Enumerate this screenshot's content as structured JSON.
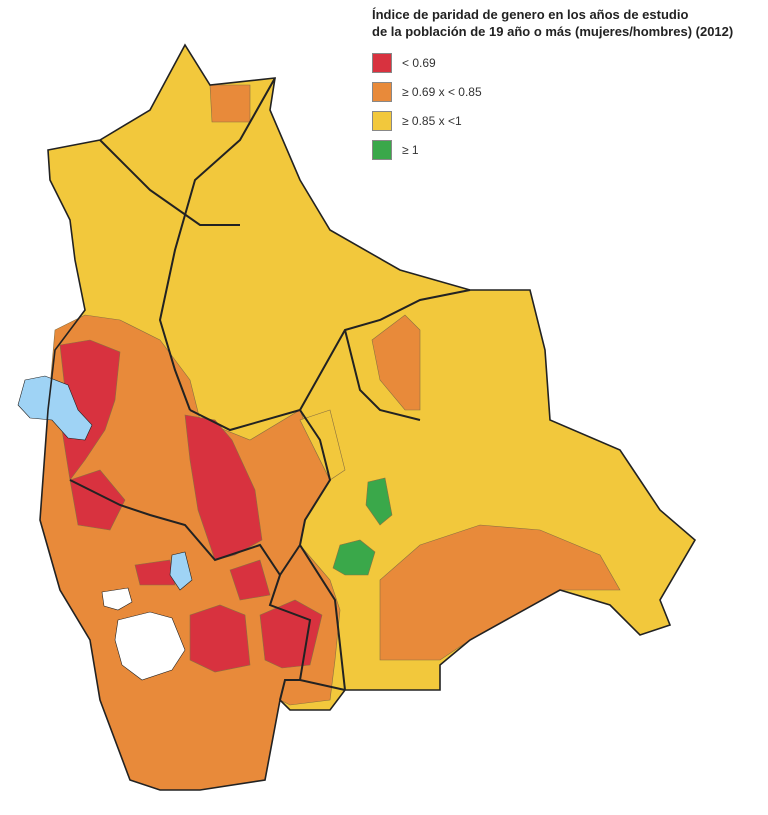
{
  "legend": {
    "title_line1": "Índice de paridad de genero en los años de estudio",
    "title_line2": "de la población de 19 año o más (mujeres/hombres) (2012)",
    "items": [
      {
        "label": "< 0.69",
        "color": "#d8323f"
      },
      {
        "label": "≥ 0.69 x < 0.85",
        "color": "#e88a3a"
      },
      {
        "label": "≥ 0.85 x <1",
        "color": "#f2c83c"
      },
      {
        "label": "≥ 1",
        "color": "#3aa84a"
      }
    ]
  },
  "map_colors": {
    "water": "#9fd3f5",
    "salt_flat": "#ffffff",
    "border": "#222222",
    "municipal_border": "#8a7040"
  }
}
